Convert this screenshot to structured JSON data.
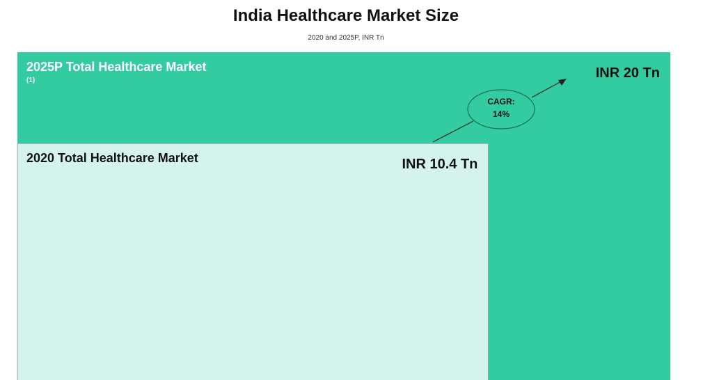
{
  "chart_data": {
    "type": "nested-area",
    "title": "India Healthcare Market Size",
    "subtitle": "2020 and 2025P, INR Tn",
    "categories": [
      "2020 Total Healthcare Market",
      "2025P Total Healthcare Market"
    ],
    "footnote_marks": [
      null,
      "(1)"
    ],
    "values": [
      10.4,
      20
    ],
    "value_labels": [
      "INR 10.4 Tn",
      "INR 20 Tn"
    ],
    "colors": [
      "#d4f3ec",
      "#33cca0"
    ],
    "label_colors": [
      "#111111",
      "#ffffff"
    ],
    "annotation": {
      "label": "CAGR:",
      "value": 14,
      "value_label": "14%"
    }
  }
}
